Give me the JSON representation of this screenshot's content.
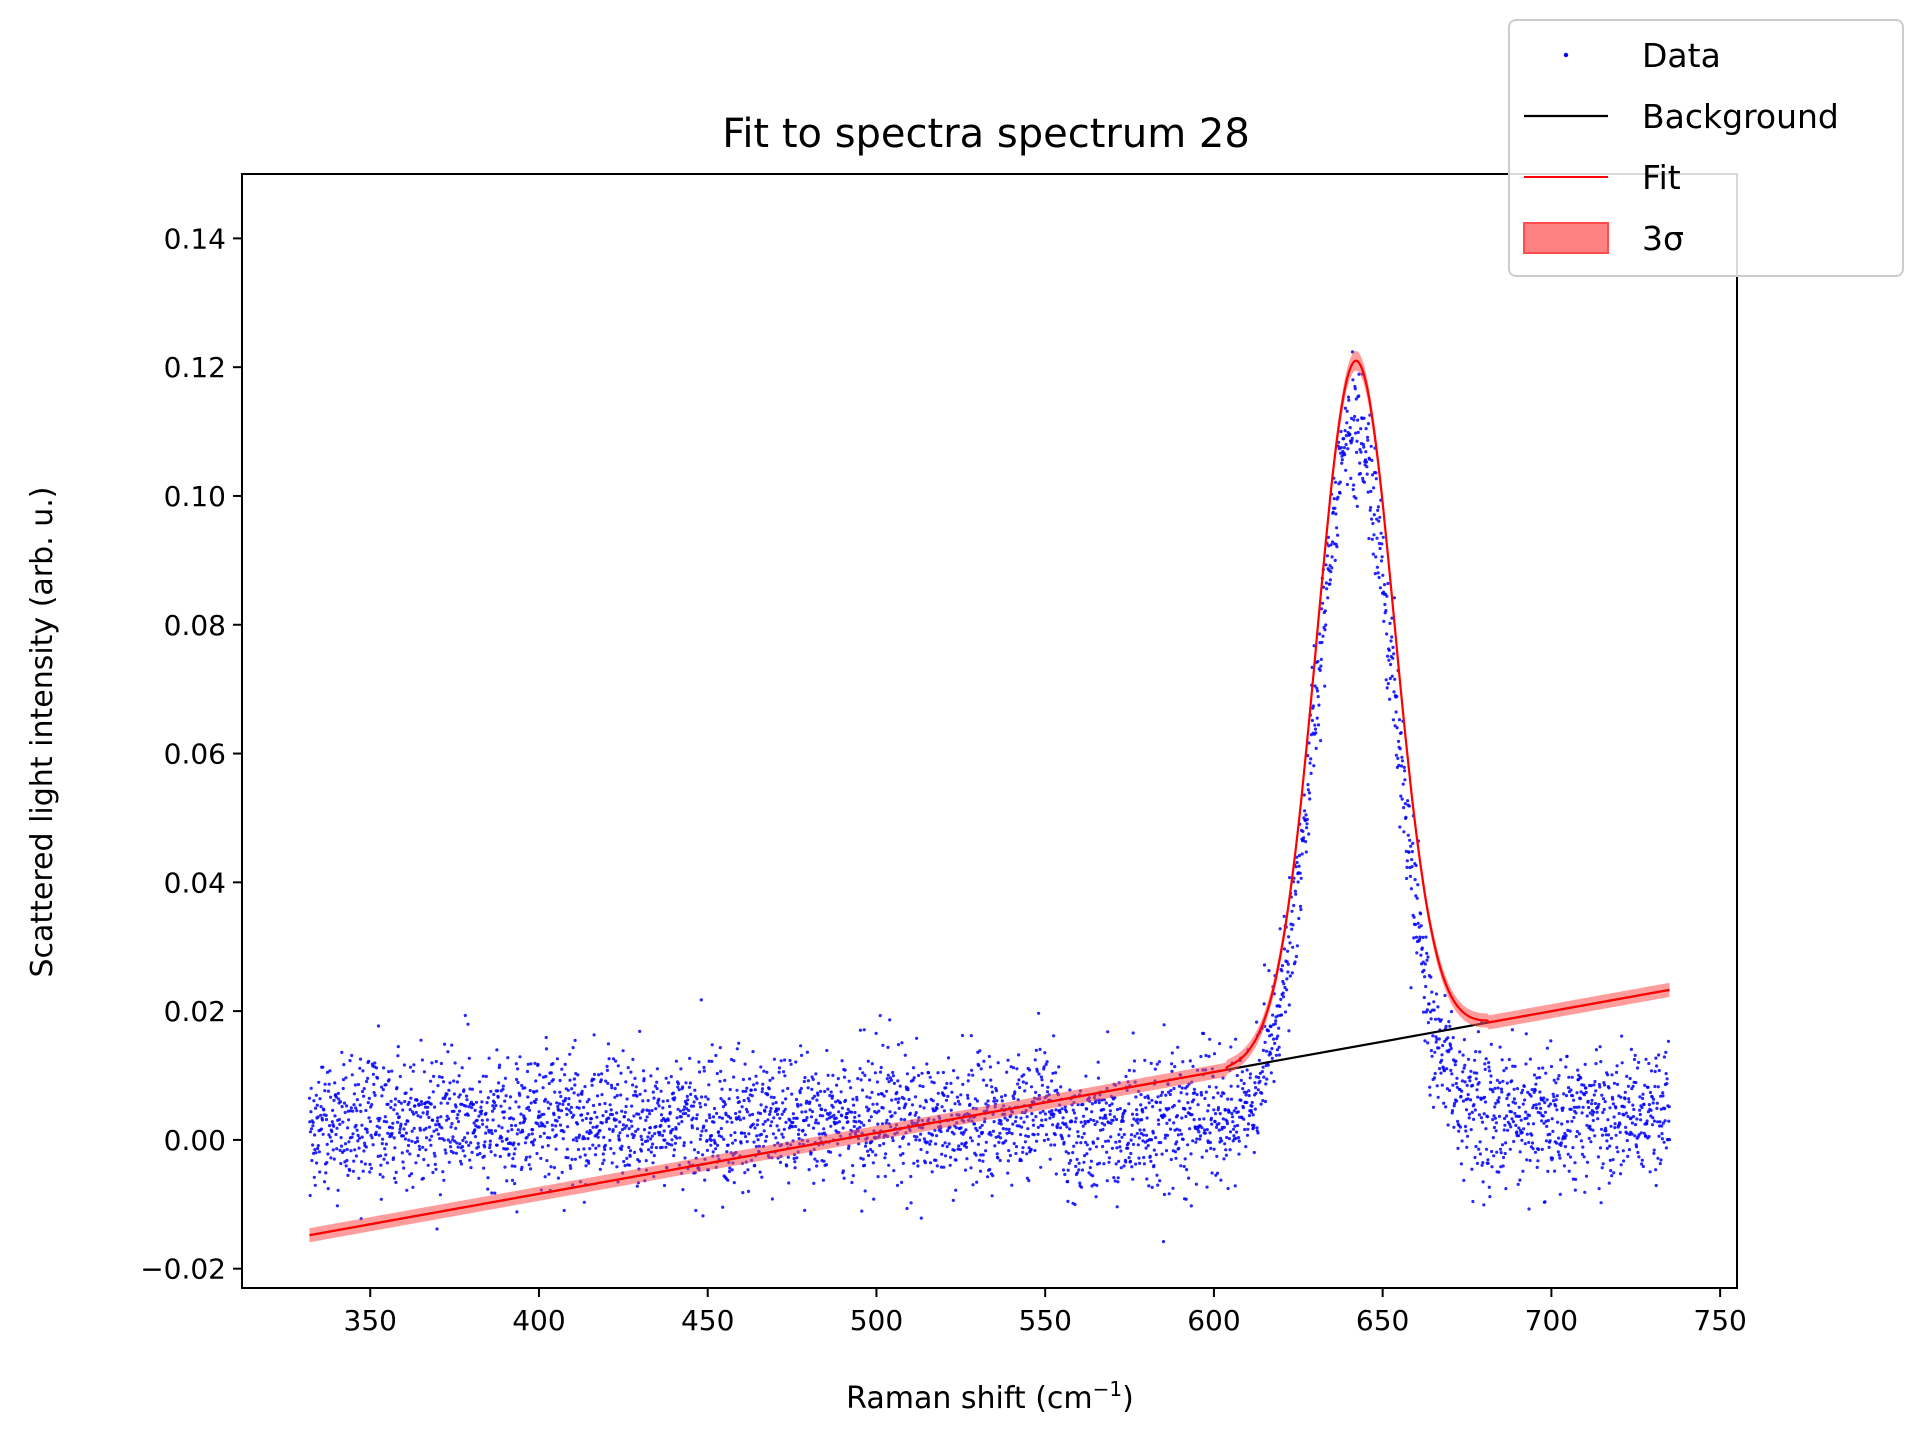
{
  "chart_data": {
    "type": "scatter",
    "title": "Fit to spectra spectrum 28",
    "xlabel": "Raman shift (cm",
    "xlabel_sup": "−1",
    "xlabel_end": ")",
    "ylabel": "Scattered light intensity (arb. u.)",
    "xlim": [
      312,
      755
    ],
    "ylim": [
      -0.023,
      0.15
    ],
    "xticks": [
      350,
      400,
      450,
      500,
      550,
      600,
      650,
      700,
      750
    ],
    "xtick_labels": [
      "350",
      "400",
      "450",
      "500",
      "550",
      "600",
      "650",
      "700",
      "750"
    ],
    "yticks": [
      -0.02,
      0.0,
      0.02,
      0.04,
      0.06,
      0.08,
      0.1,
      0.12,
      0.14
    ],
    "ytick_labels": [
      "−0.02",
      "0.00",
      "0.02",
      "0.04",
      "0.06",
      "0.08",
      "0.10",
      "0.12",
      "0.14"
    ],
    "grid": false,
    "legend_position": "top-right",
    "colors": {
      "data": "#0000ff",
      "background": "#000000",
      "fit": "#ff0000",
      "band": "#ff4d4d"
    },
    "data_summary": {
      "x_range": [
        332,
        735
      ],
      "n_points": 4000,
      "noise_sd": 0.005,
      "baseline_profile": [
        [
          332,
          0.003
        ],
        [
          545,
          0.003
        ],
        [
          548,
          0.008
        ],
        [
          558,
          0.001
        ],
        [
          600,
          0.004
        ],
        [
          640,
          0.004
        ],
        [
          680,
          0.004
        ],
        [
          735,
          0.004
        ]
      ]
    },
    "background": {
      "x": [
        332,
        735
      ],
      "y": [
        -0.0148,
        0.0233
      ]
    },
    "fit": {
      "peak_center": 642,
      "peak_amplitude": 0.1065,
      "peak_sigma": 11.5,
      "peak_cutoff": [
        604,
        681
      ]
    },
    "series": [
      {
        "name": "Data",
        "kind": "points"
      },
      {
        "name": "Background",
        "kind": "line"
      },
      {
        "name": "Fit",
        "kind": "line"
      },
      {
        "name": "3σ",
        "kind": "band"
      }
    ]
  }
}
